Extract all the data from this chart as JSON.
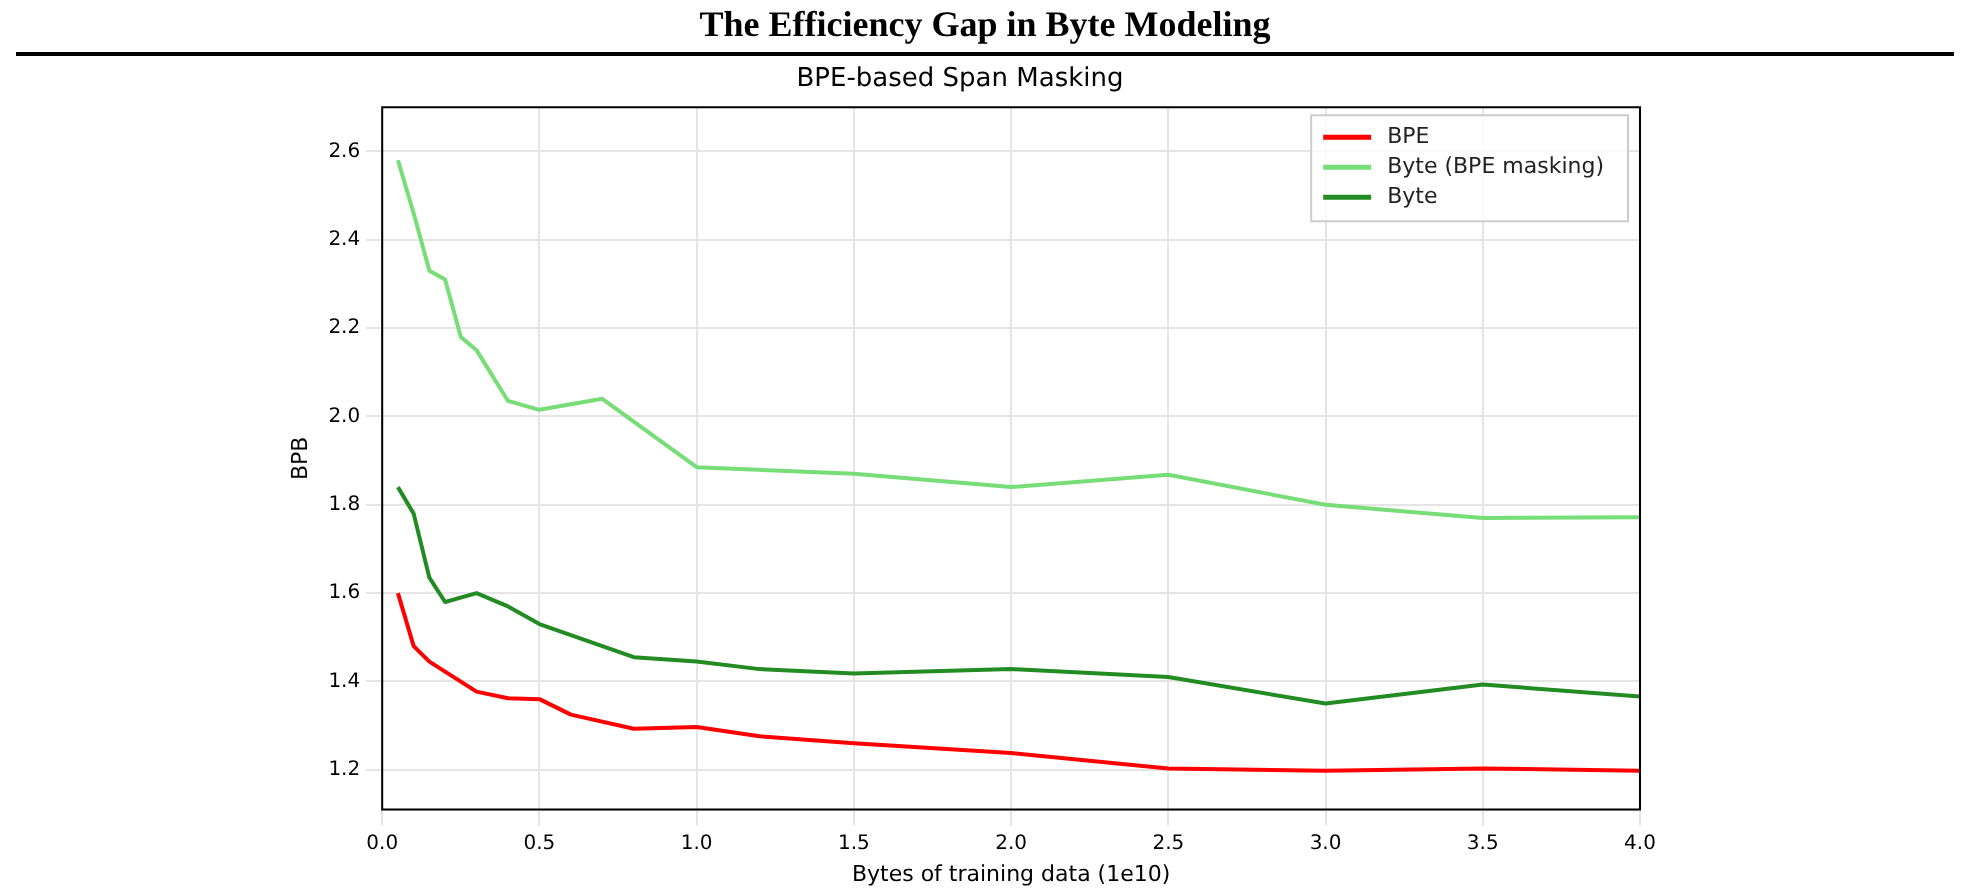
{
  "chart_data": {
    "type": "line",
    "title": "The Efficiency Gap in Byte Modeling",
    "subtitle": "BPE-based Span Masking",
    "xlabel": "Bytes of training data (1e10)",
    "ylabel": "BPB",
    "series": [
      {
        "name": "BPE",
        "color": "#ff0000",
        "x": [
          0.05,
          0.1,
          0.15,
          0.3,
          0.4,
          0.5,
          0.6,
          0.8,
          1.0,
          1.2,
          1.5,
          2.0,
          2.5,
          3.0,
          3.5,
          4.0
        ],
        "values": [
          1.6,
          1.48,
          1.445,
          1.377,
          1.362,
          1.36,
          1.325,
          1.293,
          1.297,
          1.276,
          1.26,
          1.238,
          1.203,
          1.198,
          1.203,
          1.198
        ]
      },
      {
        "name": "Byte (BPE masking)",
        "color": "#77dd77",
        "x": [
          0.05,
          0.1,
          0.15,
          0.2,
          0.25,
          0.3,
          0.4,
          0.5,
          0.7,
          1.0,
          1.5,
          2.0,
          2.5,
          3.0,
          3.5,
          4.0
        ],
        "values": [
          2.58,
          2.46,
          2.33,
          2.31,
          2.18,
          2.15,
          2.035,
          2.015,
          2.04,
          1.885,
          1.87,
          1.84,
          1.868,
          1.8,
          1.77,
          1.772
        ]
      },
      {
        "name": "Byte",
        "color": "#228b22",
        "x": [
          0.05,
          0.1,
          0.15,
          0.2,
          0.3,
          0.4,
          0.5,
          0.8,
          1.0,
          1.2,
          1.5,
          2.0,
          2.5,
          3.0,
          3.5,
          4.0
        ],
        "values": [
          1.84,
          1.78,
          1.635,
          1.58,
          1.6,
          1.57,
          1.53,
          1.455,
          1.445,
          1.428,
          1.418,
          1.428,
          1.41,
          1.35,
          1.393,
          1.366
        ]
      }
    ],
    "xlim": [
      0,
      4
    ],
    "xticks": [
      {
        "value": 0,
        "label": "0.0"
      },
      0.5,
      {
        "value": 1,
        "label": "1.0"
      },
      1.5,
      {
        "value": 2,
        "label": "2.0"
      },
      2.5,
      {
        "value": 3,
        "label": "3.0"
      },
      3.5,
      {
        "value": 4,
        "label": "4.0"
      }
    ],
    "ylim": [
      1.11,
      2.7
    ],
    "yticks": [
      1.2,
      1.4,
      1.6,
      1.8,
      {
        "value": 2,
        "label": "2.0"
      },
      2.2,
      2.4,
      2.6
    ],
    "grid": true,
    "legend": "top right",
    "marker": "none",
    "line_style": "solid"
  }
}
